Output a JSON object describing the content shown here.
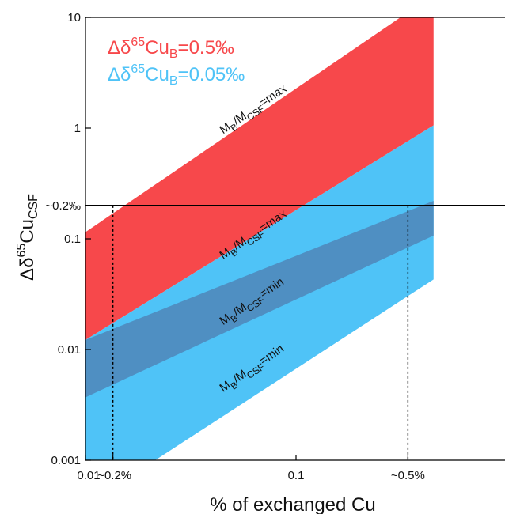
{
  "chart_data": {
    "type": "area",
    "title": "",
    "xlabel": "% of exchanged Cu",
    "ylabel_parts": {
      "base": "Δδ",
      "sup": "65",
      "main": "Cu",
      "sub": "CSF"
    },
    "xscale": "log",
    "yscale": "log",
    "xlim": [
      0.01,
      0.45
    ],
    "ylim": [
      0.001,
      10
    ],
    "x_ticks": [
      {
        "value": 0.01,
        "label": "0.01"
      },
      {
        "value": 0.0135,
        "label": "~0.2%"
      },
      {
        "value": 0.1,
        "label": "0.1"
      },
      {
        "value": 0.34,
        "label": "~0.5%"
      }
    ],
    "y_ticks": [
      {
        "value": 10,
        "label": "10"
      },
      {
        "value": 1,
        "label": "1"
      },
      {
        "value": 0.2,
        "label": "~0.2‰"
      },
      {
        "value": 0.1,
        "label": "0.1"
      },
      {
        "value": 0.01,
        "label": "0.01"
      },
      {
        "value": 0.001,
        "label": "0.001"
      }
    ],
    "grid": false,
    "legend_placement": "top-left",
    "series": [
      {
        "name_parts": {
          "pre": "Δδ",
          "sup": "65",
          "main": "Cu",
          "sub": "B",
          "post": "=0.5‰"
        },
        "color": "#f7484b",
        "x": [
          0.01,
          0.45
        ],
        "upper": [
          0.115,
          16.0
        ],
        "lower": [
          0.0122,
          1.06
        ]
      },
      {
        "name_parts": {
          "pre": "Δδ",
          "sup": "65",
          "main": "Cu",
          "sub": "B",
          "post": "=0.05‰"
        },
        "color": "#4fc3f7",
        "x": [
          0.01,
          0.45
        ],
        "upper": [
          0.0122,
          1.06
        ],
        "lower": [
          0.00039,
          0.043
        ]
      }
    ],
    "overlap_color": "#4f8fc2",
    "overlap": {
      "x": [
        0.01,
        0.45
      ],
      "upper": [
        0.0122,
        0.22
      ],
      "lower": [
        0.0037,
        0.107
      ]
    },
    "reference_line": {
      "y": 0.2
    },
    "drop_lines": [
      {
        "x": 0.0135,
        "y": 0.2
      },
      {
        "x": 0.34,
        "y": 0.2
      }
    ],
    "annotations": [
      {
        "parts": {
          "pre": "M",
          "sub1": "B",
          "mid": "/M",
          "sub2": "CSF",
          "post": "=max"
        },
        "x": 0.045,
        "y": 0.88
      },
      {
        "parts": {
          "pre": "M",
          "sub1": "B",
          "mid": "/M",
          "sub2": "CSF",
          "post": "=max"
        },
        "x": 0.045,
        "y": 0.065
      },
      {
        "parts": {
          "pre": "M",
          "sub1": "B",
          "mid": "/M",
          "sub2": "CSF",
          "post": "=min"
        },
        "x": 0.045,
        "y": 0.0165
      },
      {
        "parts": {
          "pre": "M",
          "sub1": "B",
          "mid": "/M",
          "sub2": "CSF",
          "post": "=min"
        },
        "x": 0.045,
        "y": 0.0041
      }
    ]
  }
}
